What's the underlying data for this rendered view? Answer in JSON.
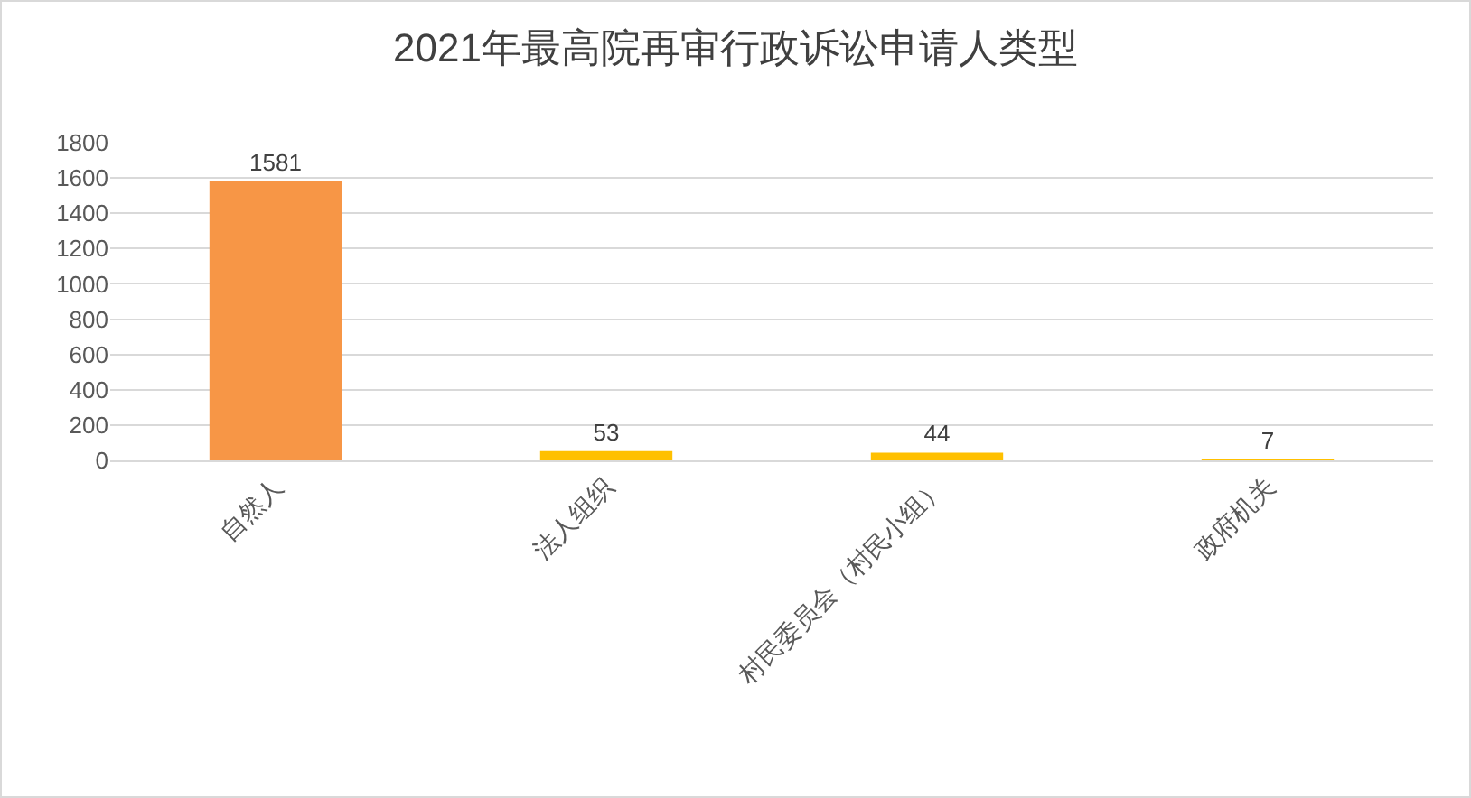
{
  "chart_data": {
    "type": "bar",
    "title": "2021年最高院再审行政诉讼申请人类型",
    "categories": [
      "自然人",
      "法人组织",
      "村民委员会（村民小组）",
      "政府机关"
    ],
    "values": [
      1581,
      53,
      44,
      7
    ],
    "colors": [
      "#f79646",
      "#ffc000",
      "#ffc000",
      "#ffc000"
    ],
    "ylim": [
      0,
      1800
    ],
    "yticks": [
      0,
      200,
      400,
      600,
      800,
      1000,
      1200,
      1400,
      1600,
      1800
    ],
    "grid": "y",
    "data_labels": true
  }
}
